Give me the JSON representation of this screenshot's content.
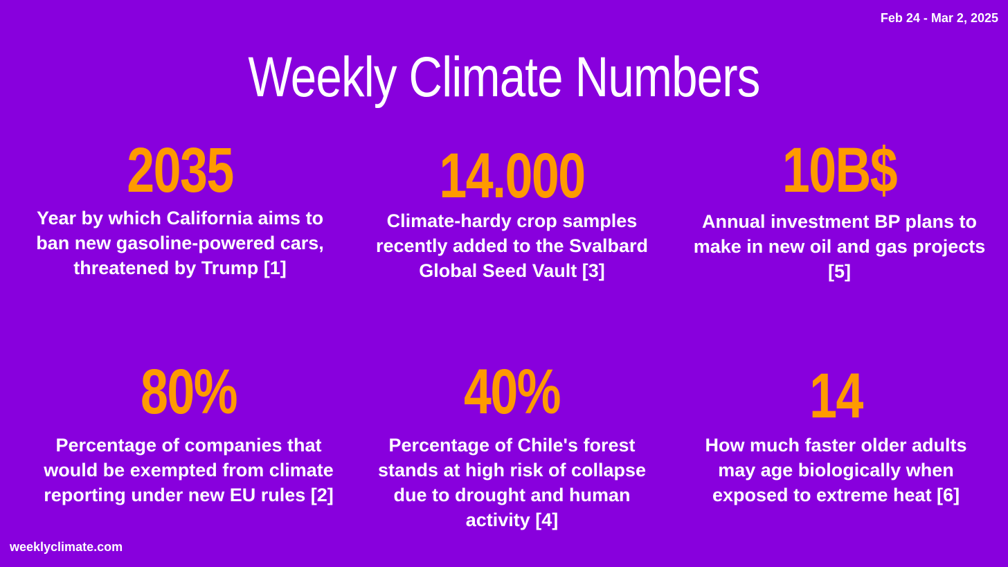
{
  "header": {
    "date_range": "Feb 24 - Mar 2, 2025",
    "title": "Weekly Climate Numbers"
  },
  "stats": [
    {
      "number": "2035",
      "description": "Year by which California aims to ban new gasoline-powered cars, threatened by Trump [1]"
    },
    {
      "number": "14.000",
      "description": "Climate-hardy crop samples recently added to the Svalbard Global Seed Vault [3]"
    },
    {
      "number": "10B$",
      "description": "Annual investment BP plans to make in new oil and gas projects [5]"
    },
    {
      "number": "80%",
      "description": "Percentage of companies that would be exempted from climate reporting under new EU rules [2]"
    },
    {
      "number": "40%",
      "description": "Percentage of Chile's forest stands at high risk of collapse due to drought and human activity [4]"
    },
    {
      "number": "14",
      "description": "How much faster older adults may age biologically when exposed to extreme heat [6]"
    }
  ],
  "footer": {
    "site": "weeklyclimate.com"
  },
  "colors": {
    "background": "#8800dd",
    "accent": "#ff9a00",
    "text": "#ffffff"
  }
}
